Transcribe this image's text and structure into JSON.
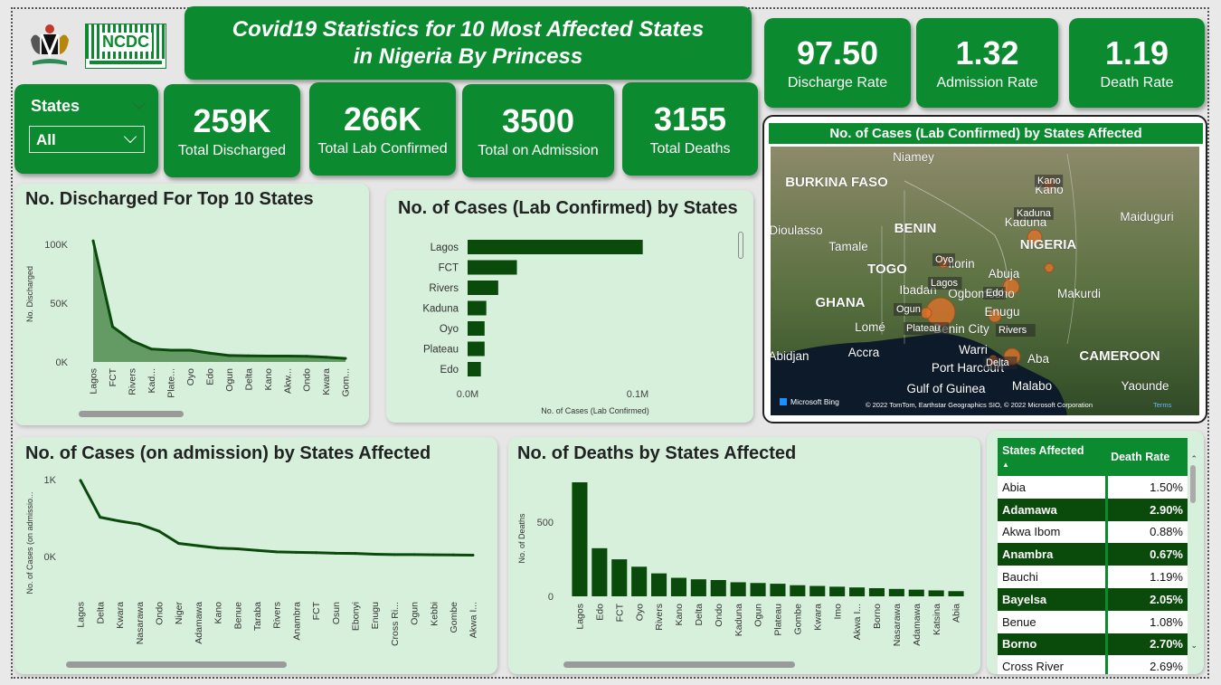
{
  "header": {
    "title_line1": "Covid19 Statistics for 10 Most Affected States",
    "title_line2": "in Nigeria By Princess",
    "logo_ncdc_text": "NCDC"
  },
  "top_kpis": [
    {
      "value": "97.50",
      "label": "Discharge Rate"
    },
    {
      "value": "1.32",
      "label": "Admission Rate"
    },
    {
      "value": "1.19",
      "label": "Death Rate"
    }
  ],
  "slicer": {
    "label": "States",
    "value": "All"
  },
  "kpis": [
    {
      "value": "259K",
      "label": "Total Discharged"
    },
    {
      "value": "266K",
      "label": "Total Lab Confirmed"
    },
    {
      "value": "3500",
      "label": "Total on Admission"
    },
    {
      "value": "3155",
      "label": "Total Deaths"
    }
  ],
  "map": {
    "title": "No. of Cases (Lab Confirmed) by States Affected",
    "bing": "Microsoft Bing",
    "copyright": "© 2022 TomTom, Earthstar Geographics SIO, © 2022 Microsoft Corporation",
    "terms": "Terms",
    "place_labels": [
      {
        "name": "Niamey",
        "x": 1010,
        "y": 178,
        "bold": false
      },
      {
        "name": "BURKINA FASO",
        "x": 925,
        "y": 206,
        "bold": true
      },
      {
        "name": "BENIN",
        "x": 1012,
        "y": 257,
        "bold": true
      },
      {
        "name": "Dioulasso",
        "x": 880,
        "y": 259,
        "bold": false
      },
      {
        "name": "Tamale",
        "x": 938,
        "y": 277,
        "bold": false
      },
      {
        "name": "TOGO",
        "x": 981,
        "y": 302,
        "bold": true
      },
      {
        "name": "GHANA",
        "x": 929,
        "y": 339,
        "bold": true
      },
      {
        "name": "Lomé",
        "x": 962,
        "y": 366,
        "bold": false
      },
      {
        "name": "Accra",
        "x": 955,
        "y": 394,
        "bold": false
      },
      {
        "name": "Abidjan",
        "x": 872,
        "y": 398,
        "bold": false
      },
      {
        "name": "Kano",
        "x": 1160,
        "y": 214,
        "bold": false
      },
      {
        "name": "Kaduna",
        "x": 1134,
        "y": 250,
        "bold": false
      },
      {
        "name": "NIGERIA",
        "x": 1159,
        "y": 275,
        "bold": true
      },
      {
        "name": "Maiduguri",
        "x": 1268,
        "y": 244,
        "bold": false
      },
      {
        "name": "Abuja",
        "x": 1110,
        "y": 307,
        "bold": false
      },
      {
        "name": "Makurdi",
        "x": 1193,
        "y": 329,
        "bold": false
      },
      {
        "name": "Enugu",
        "x": 1108,
        "y": 349,
        "bold": false
      },
      {
        "name": "Warri",
        "x": 1076,
        "y": 391,
        "bold": false
      },
      {
        "name": "Port Harcourt",
        "x": 1070,
        "y": 411,
        "bold": false
      },
      {
        "name": "Gulf of Guinea",
        "x": 1046,
        "y": 434,
        "bold": false
      },
      {
        "name": "Aba",
        "x": 1148,
        "y": 401,
        "bold": false
      },
      {
        "name": "Malabo",
        "x": 1141,
        "y": 431,
        "bold": false
      },
      {
        "name": "CAMEROON",
        "x": 1238,
        "y": 398,
        "bold": true
      },
      {
        "name": "Yaounde",
        "x": 1266,
        "y": 431,
        "bold": false
      },
      {
        "name": "Ibadan",
        "x": 1015,
        "y": 325,
        "bold": false
      },
      {
        "name": "Ilorin",
        "x": 1063,
        "y": 296,
        "bold": false
      },
      {
        "name": "Ogbomosho",
        "x": 1085,
        "y": 329,
        "bold": false
      },
      {
        "name": "Benin City",
        "x": 1063,
        "y": 368,
        "bold": false
      }
    ],
    "bubbles": [
      {
        "state": "Kano",
        "x": 1160,
        "y": 203,
        "r": 6
      },
      {
        "state": "Kaduna",
        "x": 1144,
        "y": 262,
        "r": 8
      },
      {
        "state": "Oyo",
        "x": 1043,
        "y": 290,
        "r": 6
      },
      {
        "state": "Lagos",
        "x": 1040,
        "y": 345,
        "r": 16
      },
      {
        "state": "Ogun",
        "x": 1024,
        "y": 346,
        "r": 6
      },
      {
        "state": "Plateau",
        "x": 1160,
        "y": 296,
        "r": 5
      },
      {
        "state": "Edo",
        "x": 1100,
        "y": 349,
        "r": 7
      },
      {
        "state": "Rivers",
        "x": 1119,
        "y": 394,
        "r": 9
      },
      {
        "state": "FCT",
        "x": 1118,
        "y": 317,
        "r": 9
      },
      {
        "state": "Delta",
        "x": 1098,
        "y": 398,
        "r": 5
      }
    ],
    "bubble_labels": [
      {
        "name": "Kano",
        "x": 1147,
        "y": 203
      },
      {
        "name": "Kaduna",
        "x": 1124,
        "y": 239
      },
      {
        "name": "Oyo",
        "x": 1034,
        "y": 290
      },
      {
        "name": "Lagos",
        "x": 1029,
        "y": 316
      },
      {
        "name": "Edo",
        "x": 1090,
        "y": 327
      },
      {
        "name": "Ogun",
        "x": 991,
        "y": 345
      },
      {
        "name": "Plateau",
        "x": 1002,
        "y": 366
      },
      {
        "name": "Rivers",
        "x": 1104,
        "y": 368
      },
      {
        "name": "Delta",
        "x": 1090,
        "y": 404
      }
    ]
  },
  "discharged_chart": {
    "title": "No. Discharged For Top 10 States",
    "ylabel": "No. Discharged"
  },
  "lab_chart": {
    "title": "No. of Cases (Lab Confirmed) by States",
    "xlabel": "No. of Cases (Lab Confirmed)"
  },
  "admission_chart": {
    "title": "No. of Cases (on admission) by States Affected",
    "ylabel": "No. of Cases (on admissio..."
  },
  "deaths_chart": {
    "title": "No. of Deaths by States Affected",
    "ylabel": "No. of Deaths"
  },
  "rates_table": {
    "headers": [
      "States Affected",
      "Death Rate"
    ],
    "rows": [
      {
        "state": "Abia",
        "rate": "1.50%",
        "dark": false
      },
      {
        "state": "Adamawa",
        "rate": "2.90%",
        "dark": true
      },
      {
        "state": "Akwa Ibom",
        "rate": "0.88%",
        "dark": false
      },
      {
        "state": "Anambra",
        "rate": "0.67%",
        "dark": true
      },
      {
        "state": "Bauchi",
        "rate": "1.19%",
        "dark": false
      },
      {
        "state": "Bayelsa",
        "rate": "2.05%",
        "dark": true
      },
      {
        "state": "Benue",
        "rate": "1.08%",
        "dark": false
      },
      {
        "state": "Borno",
        "rate": "2.70%",
        "dark": true
      },
      {
        "state": "Cross River",
        "rate": "2.69%",
        "dark": false
      }
    ]
  },
  "chart_data": [
    {
      "type": "area",
      "title": "No. Discharged For Top 10 States",
      "ylabel": "No. Discharged",
      "ylim": [
        0,
        100000
      ],
      "yticks": [
        {
          "v": 0,
          "label": "0K"
        },
        {
          "v": 50000,
          "label": "50K"
        },
        {
          "v": 100000,
          "label": "100K"
        }
      ],
      "categories": [
        "Lagos",
        "FCT",
        "Rivers",
        "Kad...",
        "Plate...",
        "Oyo",
        "Edo",
        "Ogun",
        "Delta",
        "Kano",
        "Akw...",
        "Ondo",
        "Kwara",
        "Gom..."
      ],
      "values": [
        103000,
        30000,
        18000,
        11000,
        10000,
        10000,
        7500,
        5500,
        5200,
        5000,
        5000,
        4800,
        4000,
        3000
      ]
    },
    {
      "type": "bar",
      "title": "No. of Cases (Lab Confirmed) by States",
      "xlabel": "No. of Cases (Lab Confirmed)",
      "xlim": [
        0,
        120000
      ],
      "xticks": [
        {
          "v": 0,
          "label": "0.0M"
        },
        {
          "v": 100000,
          "label": "0.1M"
        }
      ],
      "categories": [
        "Lagos",
        "FCT",
        "Rivers",
        "Kaduna",
        "Oyo",
        "Plateau",
        "Edo"
      ],
      "values": [
        103000,
        29000,
        18000,
        11000,
        10000,
        10000,
        7800
      ]
    },
    {
      "type": "line",
      "title": "No. of Cases (on admission) by States Affected",
      "ylabel": "No. of Cases (on admissio...",
      "ylim": [
        0,
        1000
      ],
      "yticks": [
        {
          "v": 0,
          "label": "0K"
        },
        {
          "v": 1000,
          "label": "1K"
        }
      ],
      "categories": [
        "Lagos",
        "Delta",
        "Kwara",
        "Nasarawa",
        "Ondo",
        "Niger",
        "Adamawa",
        "Kano",
        "Benue",
        "Taraba",
        "Rivers",
        "Anambra",
        "FCT",
        "Osun",
        "Ebonyi",
        "Enugu",
        "Cross Ri...",
        "Ogun",
        "Kebbi",
        "Gombe",
        "Akwa I..."
      ],
      "values": [
        990,
        510,
        460,
        420,
        330,
        170,
        140,
        110,
        100,
        80,
        60,
        55,
        50,
        42,
        40,
        30,
        25,
        25,
        22,
        20,
        18
      ]
    },
    {
      "type": "bar",
      "title": "No. of Deaths by States Affected",
      "ylabel": "No. of Deaths",
      "ylim": [
        0,
        800
      ],
      "yticks": [
        {
          "v": 0,
          "label": "0"
        },
        {
          "v": 500,
          "label": "500"
        }
      ],
      "categories": [
        "Lagos",
        "Edo",
        "FCT",
        "Oyo",
        "Rivers",
        "Kano",
        "Delta",
        "Ondo",
        "Kaduna",
        "Ogun",
        "Plateau",
        "Gombe",
        "Kwara",
        "Imo",
        "Akwa I...",
        "Borno",
        "Nasarawa",
        "Adamawa",
        "Katsina",
        "Abia"
      ],
      "values": [
        770,
        325,
        250,
        200,
        155,
        125,
        115,
        110,
        95,
        90,
        85,
        75,
        70,
        65,
        60,
        55,
        50,
        45,
        40,
        35
      ]
    }
  ]
}
